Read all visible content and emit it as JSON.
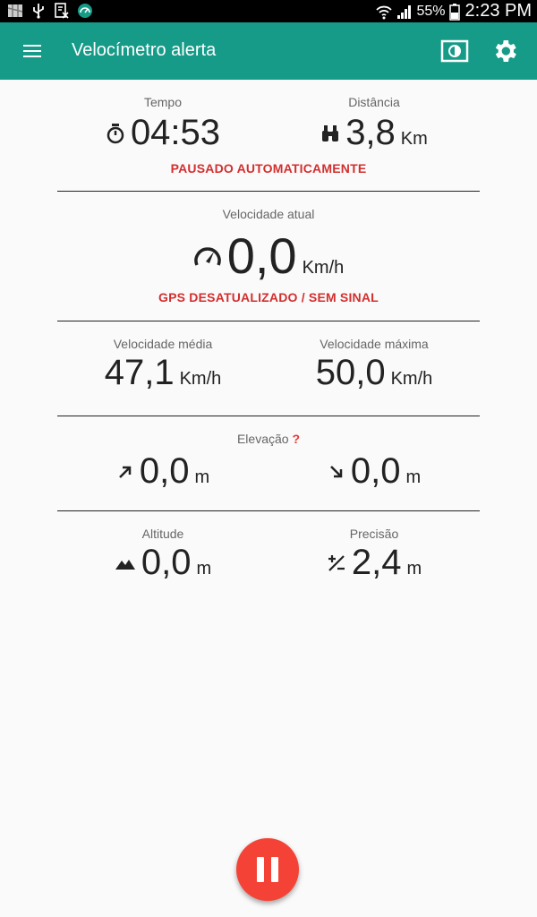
{
  "status_bar": {
    "battery": "55%",
    "time": "2:23 PM"
  },
  "app_bar": {
    "title": "Velocímetro alerta"
  },
  "time_section": {
    "label": "Tempo",
    "value": "04:53",
    "alert": "PAUSADO AUTOMATICAMENTE"
  },
  "distance_section": {
    "label": "Distância",
    "value": "3,8",
    "unit": "Km"
  },
  "current_speed": {
    "label": "Velocidade atual",
    "value": "0,0",
    "unit": "Km/h",
    "alert": "GPS DESATUALIZADO / SEM SINAL"
  },
  "avg_speed": {
    "label": "Velocidade média",
    "value": "47,1",
    "unit": "Km/h"
  },
  "max_speed": {
    "label": "Velocidade máxima",
    "value": "50,0",
    "unit": "Km/h"
  },
  "elevation": {
    "label": "Elevação",
    "help_icon": "question-icon",
    "up_value": "0,0",
    "up_unit": "m",
    "down_value": "0,0",
    "down_unit": "m"
  },
  "altitude": {
    "label": "Altitude",
    "value": "0,0",
    "unit": "m"
  },
  "precision": {
    "label": "Precisão",
    "value": "2,4",
    "unit": "m"
  },
  "colors": {
    "primary": "#159b88",
    "alert": "#d32f2f",
    "fab": "#f44336"
  }
}
